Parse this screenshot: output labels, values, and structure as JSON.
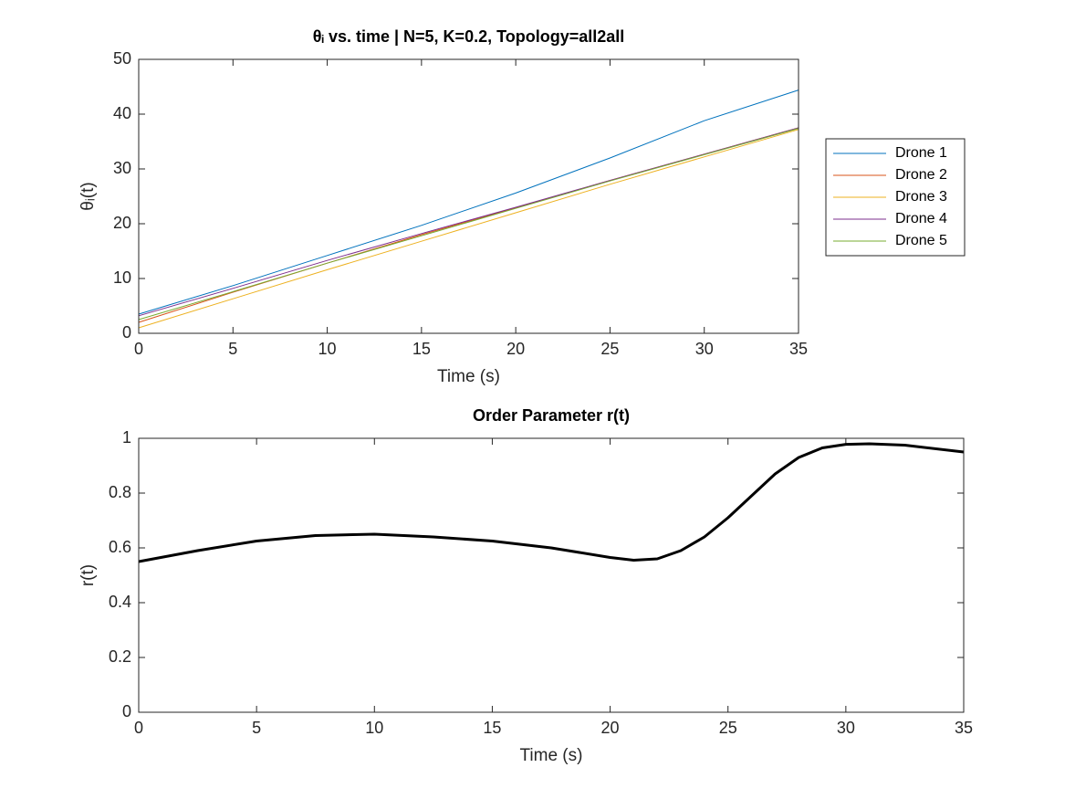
{
  "chart_data": [
    {
      "type": "line",
      "title": "θᵢ vs. time | N=5, K=0.2, Topology=all2all",
      "xlabel": "Time (s)",
      "ylabel": "θᵢ(t)",
      "x": [
        0,
        5,
        10,
        15,
        20,
        25,
        30,
        35
      ],
      "series": [
        {
          "name": "Drone 1",
          "color": "#0072BD",
          "values": [
            3.5,
            8.7,
            14.2,
            19.7,
            25.6,
            32.0,
            38.8,
            44.4
          ]
        },
        {
          "name": "Drone 2",
          "color": "#D95319",
          "values": [
            2.0,
            7.5,
            12.8,
            18.0,
            22.9,
            27.9,
            32.7,
            37.5
          ]
        },
        {
          "name": "Drone 3",
          "color": "#EDB120",
          "values": [
            1.0,
            6.3,
            11.6,
            16.8,
            22.0,
            27.2,
            32.2,
            37.2
          ]
        },
        {
          "name": "Drone 4",
          "color": "#7E2F8E",
          "values": [
            3.2,
            8.2,
            13.3,
            18.2,
            23.0,
            27.9,
            32.7,
            37.5
          ]
        },
        {
          "name": "Drone 5",
          "color": "#77AC30",
          "values": [
            2.5,
            7.6,
            12.8,
            17.8,
            22.8,
            27.8,
            32.6,
            37.4
          ]
        }
      ],
      "xlim": [
        0,
        35
      ],
      "xticks": [
        0,
        5,
        10,
        15,
        20,
        25,
        30,
        35
      ],
      "ylim": [
        0,
        50
      ],
      "yticks": [
        0,
        10,
        20,
        30,
        40,
        50
      ],
      "line_width": 1,
      "legend": "outside-right"
    },
    {
      "type": "line",
      "title": "Order Parameter r(t)",
      "xlabel": "Time (s)",
      "ylabel": "r(t)",
      "x": [
        0,
        2.5,
        5,
        7.5,
        10,
        12.5,
        15,
        17.5,
        20,
        21,
        22,
        23,
        24,
        25,
        26,
        27,
        28,
        29,
        30,
        31,
        32.5,
        35
      ],
      "series": [
        {
          "color": "#000000",
          "values": [
            0.55,
            0.59,
            0.625,
            0.645,
            0.65,
            0.64,
            0.625,
            0.6,
            0.565,
            0.555,
            0.56,
            0.59,
            0.64,
            0.71,
            0.79,
            0.87,
            0.93,
            0.965,
            0.978,
            0.98,
            0.975,
            0.95
          ]
        }
      ],
      "xlim": [
        0,
        35
      ],
      "xticks": [
        0,
        5,
        10,
        15,
        20,
        25,
        30,
        35
      ],
      "ylim": [
        0,
        1
      ],
      "yticks": [
        0,
        0.2,
        0.4,
        0.6,
        0.8,
        1
      ],
      "line_width": 3
    }
  ]
}
